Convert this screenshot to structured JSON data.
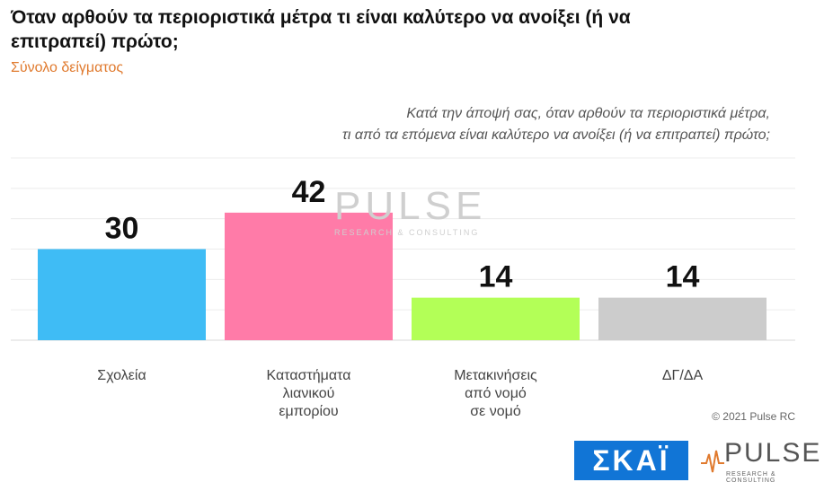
{
  "header": {
    "title": "Όταν αρθούν τα περιοριστικά μέτρα τι είναι καλύτερο να ανοίξει (ή να επιτραπεί) πρώτο;",
    "subtitle": "Σύνολο δείγματος",
    "question_line1": "Κατά την άποψή σας, όταν αρθούν τα περιοριστικά μέτρα,",
    "question_line2": "τι από τα επόμενα είναι καλύτερο να ανοίξει (ή να επιτραπεί) πρώτο;"
  },
  "chart_data": {
    "type": "bar",
    "categories": [
      [
        "Σχολεία"
      ],
      [
        "Καταστήματα",
        "λιανικού",
        "εμπορίου"
      ],
      [
        "Μετακινήσεις",
        "από νομό",
        "σε νομό"
      ],
      [
        "ΔΓ/ΔΑ"
      ]
    ],
    "values": [
      30,
      42,
      14,
      14
    ],
    "colors": [
      "#3fbcf5",
      "#ff7ba8",
      "#b3ff57",
      "#cccccc"
    ],
    "ylim": [
      0,
      60
    ],
    "grid": true
  },
  "watermark": {
    "text": "PULSE",
    "sub": "RESEARCH & CONSULTING"
  },
  "footer": {
    "copyright": "© 2021 Pulse RC",
    "skai_logo": "ΣΚΑΪ",
    "pulse_logo": "PULSE",
    "pulse_logo_sub": "RESEARCH & CONSULTING"
  }
}
